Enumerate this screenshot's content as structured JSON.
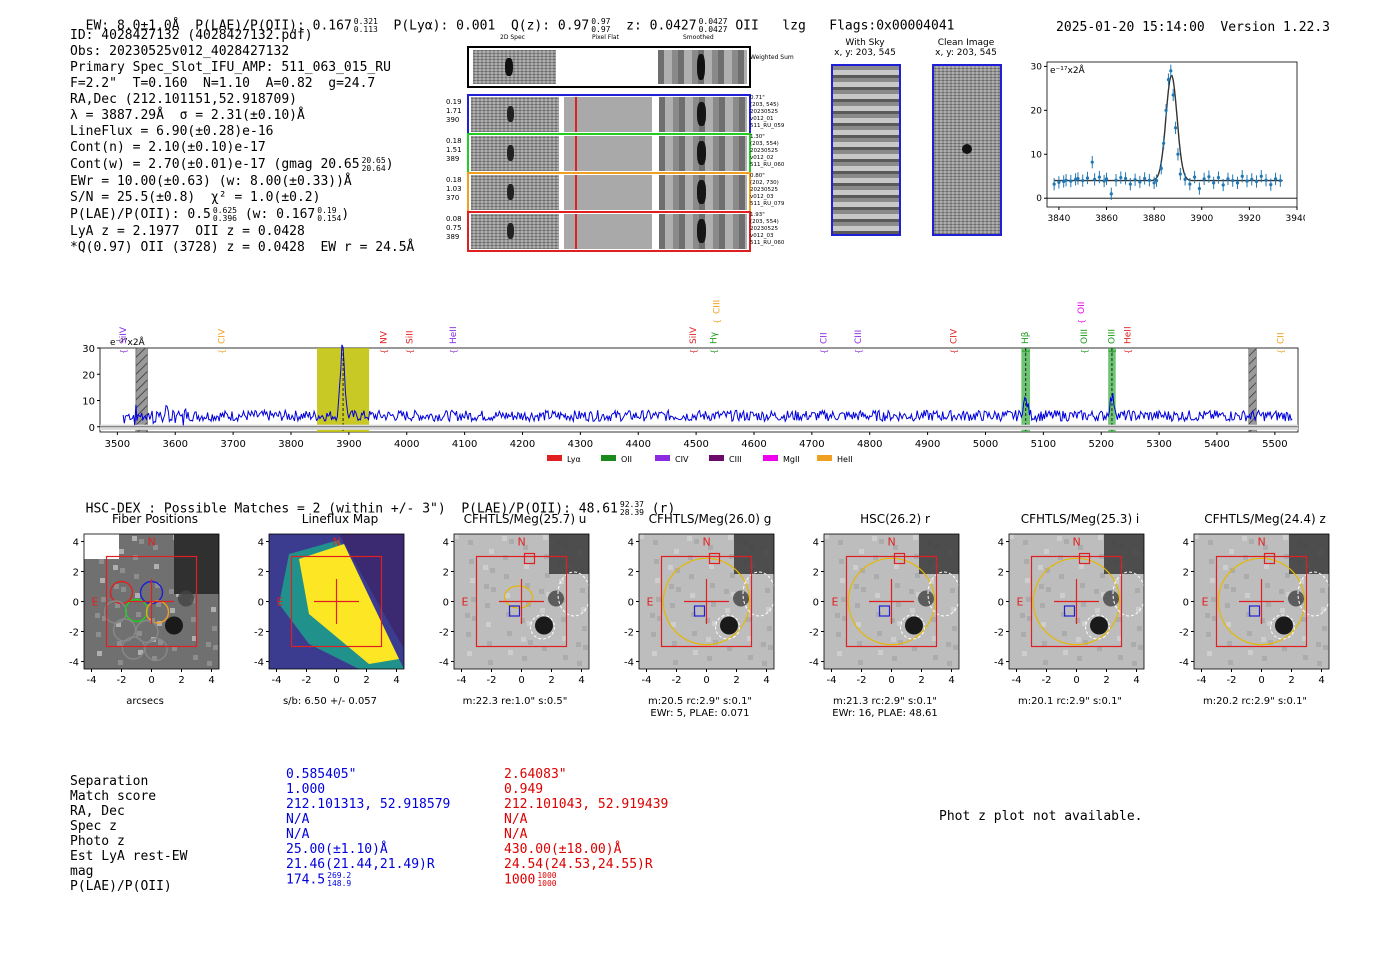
{
  "header": {
    "ew": "EW: 8.0±1.0Å",
    "plae_label": "P(LAE)/P(OII): 0.167",
    "plae_hi": "0.321",
    "plae_lo": "0.113",
    "plya": "P(Lyα): 0.001",
    "qz_label": "Q(z): 0.97",
    "qz_hi": "0.97",
    "qz_lo": "0.97",
    "z_label": "z: 0.0427",
    "z_hi": "0.0427",
    "z_lo": "0.0427",
    "z_line": "OII",
    "lzg": "lzg",
    "flags": "Flags:0x00004041",
    "datetime": "2025-01-20 15:14:00",
    "version": "Version 1.22.3"
  },
  "info": {
    "lines": [
      "ID: 4028427132 (4028427132.pdf)",
      "Obs: 20230525v012_4028427132",
      "Primary Spec_Slot_IFU_AMP: 511_063_015_RU",
      "F=2.2\"  T=0.160  N=1.10  A=0.82  g=24.7",
      "RA,Dec (212.101151,52.918709)",
      "λ = 3887.29Å  σ = 2.31(±0.10)Å",
      "LineFlux = 6.90(±0.28)e-16",
      "Cont(n) = 2.10(±0.10)e-17"
    ],
    "contw": "Cont(w) = 2.70(±0.01)e-17 (gmag 20.65",
    "contw_hi": "20.65",
    "contw_lo": "20.64",
    "ewr": "EWr = 10.00(±0.63) (w: 8.00(±0.33))Å",
    "sn": "S/N = 25.5(±0.8)  χ² = 1.0(±0.2)",
    "plae2": "P(LAE)/P(OII): 0.5",
    "plae2_hi": "0.625",
    "plae2_lo": "0.396",
    "plae2_w": "(w: 0.167",
    "plae2_w_hi": "0.19",
    "plae2_w_lo": "0.154",
    "lya": "LyA z = 2.1977  OII z = 0.0428",
    "q": "*Q(0.97) OII (3728) z = 0.0428  EW r = 24.5Å"
  },
  "spec2d": {
    "col_titles": [
      "2D Spec",
      "Pixel Flat",
      "Smoothed"
    ],
    "weighted_label": "Weighted Sum",
    "rows": [
      {
        "left": [
          "0.19",
          "1.71",
          "390"
        ],
        "right": [
          "0.71\"",
          "(203, 545)",
          "20230525",
          "v012_01",
          "511_RU_059"
        ],
        "color": "#1f1fd6"
      },
      {
        "left": [
          "0.18",
          "1.51",
          "389"
        ],
        "right": [
          "1.30\"",
          "(203, 554)",
          "20230525",
          "v012_02",
          "511_RU_060"
        ],
        "color": "#22cc22"
      },
      {
        "left": [
          "0.18",
          "1.03",
          "370"
        ],
        "right": [
          "0.80\"",
          "(202, 730)",
          "20230525",
          "v012_03",
          "511_RU_079"
        ],
        "color": "#f0a020"
      },
      {
        "left": [
          "0.08",
          "0.75",
          "389"
        ],
        "right": [
          "1.93\"",
          "(203, 554)",
          "20230525",
          "v012_03",
          "511_RU_060"
        ],
        "color": "#e02020"
      }
    ]
  },
  "sky": {
    "with_sky_title": "With Sky",
    "with_sky_xy": "x, y: 203, 545",
    "clean_title": "Clean Image",
    "clean_xy": "x, y: 203, 545"
  },
  "zoom_plot": {
    "unit": "e⁻¹⁷x2Å",
    "x_ticks": [
      "3840",
      "3860",
      "3880",
      "3900",
      "3920",
      "3940"
    ],
    "y_ticks": [
      "30",
      "20",
      "10",
      "0"
    ],
    "xlim": [
      3835,
      3940
    ],
    "ylim": [
      -2,
      31
    ],
    "line_center": 3887.29,
    "sigma": 2.31,
    "peak": 28,
    "cont": 4,
    "points": [
      [
        3838,
        3.2
      ],
      [
        3840,
        3.6
      ],
      [
        3842,
        3.8
      ],
      [
        3843,
        4.1
      ],
      [
        3845,
        3.9
      ],
      [
        3847,
        4.3
      ],
      [
        3848,
        4.5
      ],
      [
        3850,
        4.0
      ],
      [
        3852,
        4.6
      ],
      [
        3854,
        8.2
      ],
      [
        3855,
        4.3
      ],
      [
        3857,
        4.8
      ],
      [
        3859,
        3.9
      ],
      [
        3860,
        4.4
      ],
      [
        3862,
        1.0
      ],
      [
        3864,
        4.1
      ],
      [
        3866,
        4.7
      ],
      [
        3868,
        4.5
      ],
      [
        3870,
        3.2
      ],
      [
        3872,
        4.2
      ],
      [
        3874,
        3.7
      ],
      [
        3876,
        4.5
      ],
      [
        3878,
        4.1
      ],
      [
        3880,
        3.5
      ],
      [
        3881,
        4.0
      ],
      [
        3883,
        6.8
      ],
      [
        3884,
        12.5
      ],
      [
        3885,
        20.0
      ],
      [
        3886,
        27.0
      ],
      [
        3887,
        29.0
      ],
      [
        3888,
        23.5
      ],
      [
        3889,
        16.0
      ],
      [
        3890,
        10.0
      ],
      [
        3891,
        5.5
      ],
      [
        3893,
        4.3
      ],
      [
        3895,
        3.2
      ],
      [
        3897,
        4.8
      ],
      [
        3899,
        2.2
      ],
      [
        3901,
        4.4
      ],
      [
        3903,
        4.9
      ],
      [
        3905,
        3.5
      ],
      [
        3907,
        4.7
      ],
      [
        3909,
        3.0
      ],
      [
        3911,
        4.4
      ],
      [
        3913,
        4.0
      ],
      [
        3915,
        3.5
      ],
      [
        3917,
        5.0
      ],
      [
        3919,
        3.9
      ],
      [
        3921,
        4.3
      ],
      [
        3923,
        3.8
      ],
      [
        3925,
        5.0
      ],
      [
        3927,
        4.1
      ],
      [
        3929,
        3.1
      ],
      [
        3931,
        4.4
      ],
      [
        3933,
        4.0
      ]
    ]
  },
  "full_spec": {
    "unit": "e⁻¹⁷x2Å",
    "x_ticks": [
      "3500",
      "3600",
      "3700",
      "3800",
      "3900",
      "4000",
      "4100",
      "4200",
      "4300",
      "4400",
      "4500",
      "4600",
      "4700",
      "4800",
      "4900",
      "5000",
      "5100",
      "5200",
      "5300",
      "5400",
      "5500"
    ],
    "y_ticks": [
      "30",
      "20",
      "10",
      "0"
    ],
    "xlim": [
      3470,
      5540
    ],
    "ylim": [
      -2,
      30
    ],
    "highlight": [
      3845,
      3935
    ],
    "hatched": [
      [
        3532,
        3552
      ],
      [
        5455,
        5468
      ]
    ],
    "green_bands": [
      [
        5062,
        5077
      ],
      [
        5212,
        5225
      ]
    ],
    "emission": [
      [
        3889,
        28,
        3.5
      ],
      [
        5069,
        6,
        4
      ],
      [
        5219,
        7,
        4
      ]
    ],
    "lines": [
      {
        "name": "SiIV",
        "wl": 3510,
        "color": "#8a2be2",
        "high": false
      },
      {
        "name": "CIV",
        "wl": 3680,
        "color": "#f0a020",
        "high": false
      },
      {
        "name": "NV",
        "wl": 3960,
        "color": "#e02020",
        "high": false
      },
      {
        "name": "SiII",
        "wl": 4005,
        "color": "#e02020",
        "high": false
      },
      {
        "name": "HeII",
        "wl": 4080,
        "color": "#8a2be2",
        "high": false
      },
      {
        "name": "SiIV",
        "wl": 4495,
        "color": "#e02020",
        "high": false
      },
      {
        "name": "CIII",
        "wl": 4535,
        "color": "#f0a020",
        "high": true
      },
      {
        "name": "Hγ",
        "wl": 4530,
        "color": "#1a9a1a",
        "high": false
      },
      {
        "name": "CII",
        "wl": 4720,
        "color": "#8a2be2",
        "high": false
      },
      {
        "name": "CIII",
        "wl": 4780,
        "color": "#8a2be2",
        "high": false
      },
      {
        "name": "CIV",
        "wl": 4945,
        "color": "#e02020",
        "high": false
      },
      {
        "name": "Hβ",
        "wl": 5068,
        "color": "#1a9a1a",
        "high": false
      },
      {
        "name": "OII",
        "wl": 5165,
        "color": "#ee00ee",
        "high": true
      },
      {
        "name": "OIII",
        "wl": 5170,
        "color": "#1a9a1a",
        "high": false
      },
      {
        "name": "OIII",
        "wl": 5218,
        "color": "#1a9a1a",
        "high": false
      },
      {
        "name": "HeII",
        "wl": 5245,
        "color": "#e02020",
        "high": false
      },
      {
        "name": "CII",
        "wl": 5510,
        "color": "#f0a020",
        "high": false
      }
    ],
    "legend": [
      {
        "label": "Lyα",
        "color": "#e02020"
      },
      {
        "label": "OII",
        "color": "#1a8a1a"
      },
      {
        "label": "CIV",
        "color": "#8a2be2"
      },
      {
        "label": "CIII",
        "color": "#6a0a6a"
      },
      {
        "label": "MgII",
        "color": "#ee00ee"
      },
      {
        "label": "HeII",
        "color": "#f0a020"
      }
    ]
  },
  "hsc": {
    "title": "HSC-DEX : Possible Matches = 2 (within +/- 3\")  P(LAE)/P(OII): 48.61",
    "hi": "92.37",
    "lo": "28.39",
    "suffix": "(r)"
  },
  "cutouts": [
    {
      "title": "Fiber Positions",
      "caption1": "arcsecs",
      "caption2": ""
    },
    {
      "title": "Lineflux Map",
      "caption1": "s/b: 6.50 +/- 0.057",
      "caption2": ""
    },
    {
      "title": "CFHTLS/Meg(25.7) u",
      "caption1": "m:22.3  re:1.0\"  s:0.5\"",
      "caption2": ""
    },
    {
      "title": "CFHTLS/Meg(26.0) g",
      "caption1": "m:20.5 rc:2.9\"  s:0.1\"",
      "caption2": "EWr: 5, PLAE: 0.071"
    },
    {
      "title": "HSC(26.2) r",
      "caption1": "m:21.3 rc:2.9\"  s:0.1\"",
      "caption2": "EWr: 16, PLAE: 48.61"
    },
    {
      "title": "CFHTLS/Meg(25.3) i",
      "caption1": "m:20.1 rc:2.9\"  s:0.1\"",
      "caption2": ""
    },
    {
      "title": "CFHTLS/Meg(24.4) z",
      "caption1": "m:20.2 rc:2.9\"  s:0.1\"",
      "caption2": ""
    }
  ],
  "cutout_ticks": {
    "x": [
      "-4",
      "-2",
      "0",
      "2",
      "4"
    ],
    "y": [
      "4",
      "2",
      "0",
      "-2",
      "-4"
    ],
    "n": "N",
    "e": "E"
  },
  "table": {
    "labels": [
      "Separation",
      "Match score",
      "RA, Dec",
      "Spec z",
      "Photo z",
      "Est LyA rest-EW",
      "mag",
      "P(LAE)/P(OII)"
    ],
    "blue": [
      "0.585405\"",
      "1.000",
      "212.101313, 52.918579",
      "N/A",
      "N/A",
      "25.00(±1.10)Å",
      "21.46(21.44,21.49)R",
      "174.5"
    ],
    "blue_hi": "269.2",
    "blue_lo": "148.9",
    "red": [
      "2.64083\"",
      "0.949",
      "212.101043, 52.919439",
      "N/A",
      "N/A",
      "430.00(±18.00)Å",
      "24.54(24.53,24.55)R",
      "1000"
    ],
    "red_hi": "1000",
    "red_lo": "1000",
    "blue_color": "#0000dd",
    "red_color": "#dd0000"
  },
  "photz_note": "Phot z plot not available."
}
